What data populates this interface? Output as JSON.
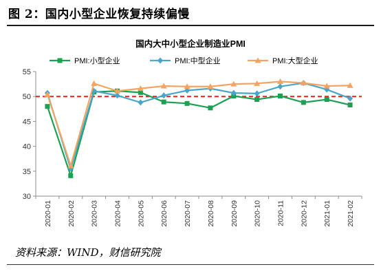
{
  "figure": {
    "title": "图 2：国内小型企业恢复持续偏慢",
    "source": "资料来源：WIND，财信研究院"
  },
  "colors": {
    "small": "#1aa152",
    "medium": "#4aa6c8",
    "large": "#f4a460",
    "refline": "#e0241b"
  },
  "chart_data": {
    "type": "line",
    "title": "国内大中小型企业制造业PMI",
    "xlabel": "",
    "ylabel": "",
    "categories": [
      "2020-01",
      "2020-02",
      "2020-03",
      "2020-04",
      "2020-05",
      "2020-06",
      "2020-07",
      "2020-08",
      "2020-09",
      "2020-10",
      "2020-11",
      "2020-12",
      "2021-01",
      "2021-02"
    ],
    "ylim": [
      30,
      55
    ],
    "yticks": [
      30,
      35,
      40,
      45,
      50,
      55
    ],
    "reference_line": 50,
    "grid": false,
    "legend_position": "top",
    "series": [
      {
        "name": "PMI:小型企业",
        "key": "small",
        "marker": "square",
        "values": [
          48.0,
          34.1,
          50.9,
          51.1,
          50.8,
          48.9,
          48.6,
          47.7,
          50.1,
          49.4,
          50.1,
          48.8,
          49.4,
          48.3
        ]
      },
      {
        "name": "PMI:中型企业",
        "key": "medium",
        "marker": "diamond",
        "values": [
          50.7,
          35.5,
          51.1,
          50.2,
          48.8,
          50.2,
          51.2,
          51.6,
          50.7,
          50.6,
          52.0,
          52.7,
          51.4,
          49.6
        ]
      },
      {
        "name": "PMI:大型企业",
        "key": "large",
        "marker": "triangle",
        "values": [
          50.4,
          36.1,
          52.6,
          51.1,
          51.6,
          52.1,
          52.0,
          52.0,
          52.5,
          52.6,
          53.0,
          52.7,
          52.1,
          52.2
        ]
      }
    ]
  }
}
